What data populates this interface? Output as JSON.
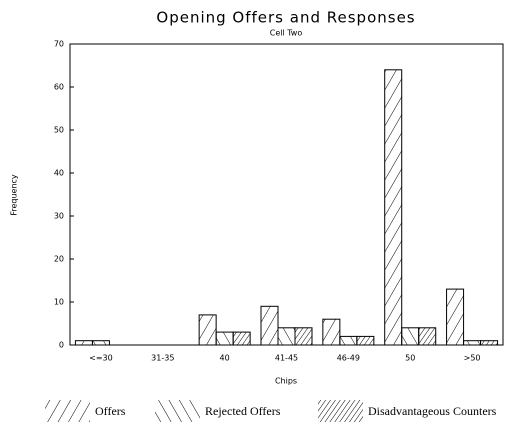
{
  "chart_data": {
    "type": "bar",
    "title": "Opening Offers and Responses",
    "subtitle": "Cell Two",
    "x_label": "Chips",
    "y_label": "Frequency",
    "categories": [
      "<=30",
      "31-35",
      "40",
      "41-45",
      "46-49",
      "50",
      ">50"
    ],
    "series": [
      {
        "name": "Offers",
        "color": "#000000",
        "hatch": "/",
        "values": [
          1,
          0,
          7,
          9,
          6,
          64,
          13
        ]
      },
      {
        "name": "Rejected Offers",
        "color": "#000000",
        "hatch": "\\",
        "values": [
          1,
          0,
          3,
          4,
          2,
          4,
          1
        ]
      },
      {
        "name": "Disadvantageous Counters",
        "color": "#000000",
        "hatch": "//",
        "values": [
          0,
          0,
          3,
          4,
          2,
          4,
          1
        ]
      }
    ],
    "ylim": [
      0,
      70
    ],
    "yticks": [
      0,
      10,
      20,
      30,
      40,
      50,
      60,
      70
    ],
    "legend": "bottom"
  }
}
